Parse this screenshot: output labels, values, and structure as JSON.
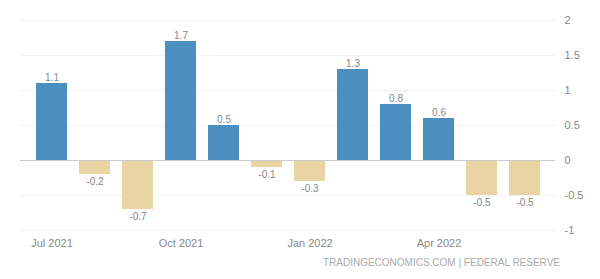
{
  "chart_data": {
    "type": "bar",
    "categories": [
      "Jul 2021",
      null,
      null,
      "Oct 2021",
      null,
      null,
      "Jan 2022",
      null,
      null,
      "Apr 2022",
      null,
      null
    ],
    "values": [
      1.1,
      -0.2,
      -0.7,
      1.7,
      0.5,
      -0.1,
      -0.3,
      1.3,
      0.8,
      0.6,
      -0.5,
      -0.5
    ],
    "colors": [
      "#4a8fc0",
      "#e8d5a3",
      "#e8d5a3",
      "#4a8fc0",
      "#4a8fc0",
      "#e8d5a3",
      "#e8d5a3",
      "#4a8fc0",
      "#4a8fc0",
      "#4a8fc0",
      "#e8d5a3",
      "#e8d5a3"
    ],
    "ylim": [
      -1,
      2
    ],
    "yticks": [
      -1,
      -0.5,
      0,
      0.5,
      1,
      1.5,
      2
    ],
    "grid": true,
    "data_labels": true,
    "caption": "TRADINGECONOMICS.COM | FEDERAL RESERVE"
  }
}
